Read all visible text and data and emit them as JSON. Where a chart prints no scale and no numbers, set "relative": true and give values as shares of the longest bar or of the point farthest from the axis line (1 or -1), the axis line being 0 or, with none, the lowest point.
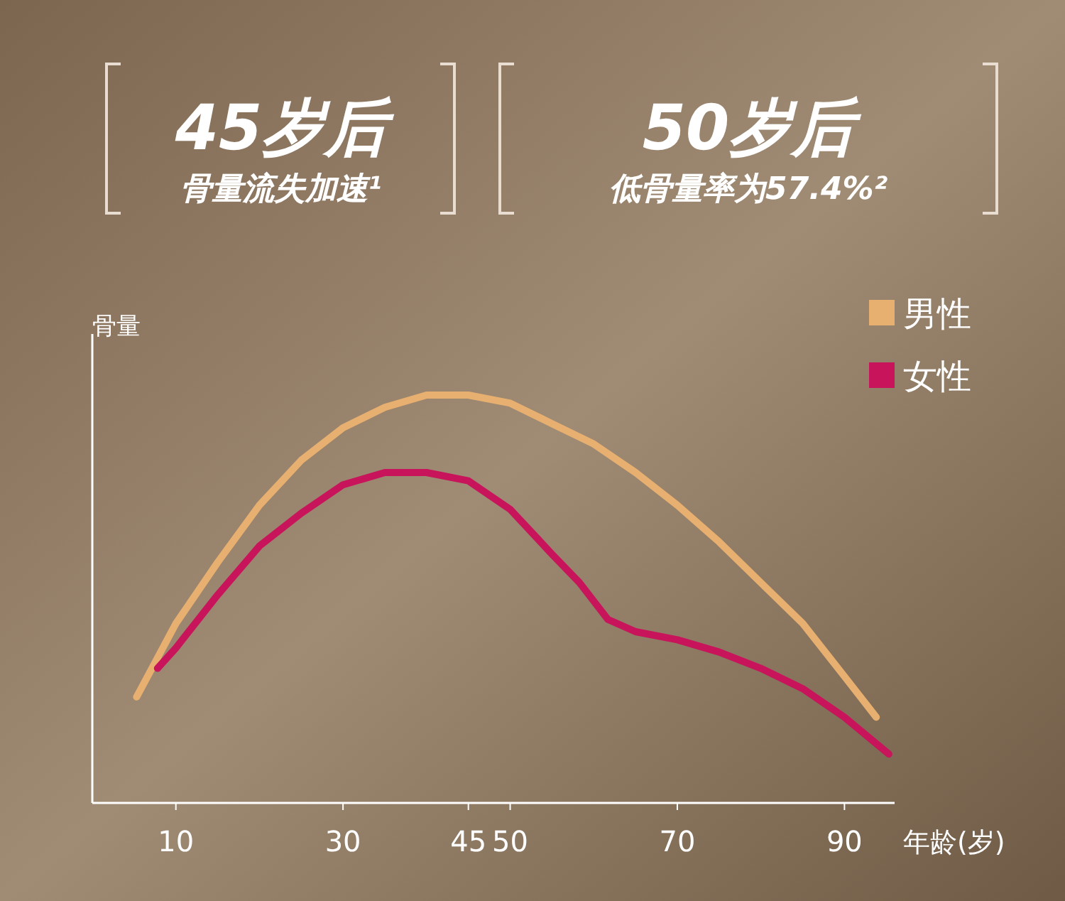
{
  "chart_data": {
    "type": "line",
    "relative": true,
    "xlabel": "年龄(岁)",
    "ylabel": "骨量",
    "legend": "top right",
    "annotations": [
      "45岁后",
      "骨量流失加速¹",
      "50岁后",
      "低骨量率为57.4%²"
    ],
    "xlim": [
      0,
      96
    ],
    "xticks": [
      10,
      30,
      45,
      50,
      70,
      90
    ],
    "series": [
      {
        "name": "男性",
        "color": "#e8b070",
        "x": [
          5.3,
          10,
          15,
          20,
          25,
          30,
          35,
          40,
          45,
          50,
          55,
          60,
          65,
          70,
          75,
          80,
          85,
          90,
          93.8
        ],
        "values": [
          0.26,
          0.44,
          0.59,
          0.73,
          0.84,
          0.92,
          0.97,
          1.0,
          1.0,
          0.98,
          0.93,
          0.88,
          0.81,
          0.73,
          0.64,
          0.54,
          0.44,
          0.31,
          0.21
        ]
      },
      {
        "name": "女性",
        "color": "#c8145a",
        "x": [
          7.8,
          10,
          15,
          20,
          25,
          30,
          35,
          40,
          45,
          50,
          55,
          58.3,
          61.7,
          65,
          70,
          75,
          80,
          85,
          90,
          95.3
        ],
        "values": [
          0.33,
          0.38,
          0.51,
          0.63,
          0.71,
          0.78,
          0.81,
          0.81,
          0.79,
          0.72,
          0.61,
          0.54,
          0.45,
          0.42,
          0.4,
          0.37,
          0.33,
          0.28,
          0.21,
          0.12
        ]
      }
    ]
  }
}
